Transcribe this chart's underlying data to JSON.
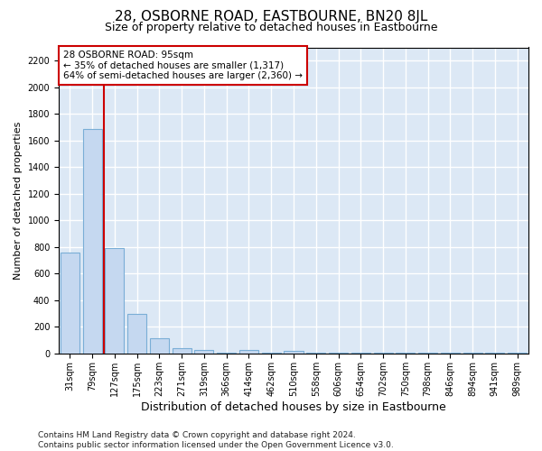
{
  "title": "28, OSBORNE ROAD, EASTBOURNE, BN20 8JL",
  "subtitle": "Size of property relative to detached houses in Eastbourne",
  "xlabel": "Distribution of detached houses by size in Eastbourne",
  "ylabel": "Number of detached properties",
  "categories": [
    "31sqm",
    "79sqm",
    "127sqm",
    "175sqm",
    "223sqm",
    "271sqm",
    "319sqm",
    "366sqm",
    "414sqm",
    "462sqm",
    "510sqm",
    "558sqm",
    "606sqm",
    "654sqm",
    "702sqm",
    "750sqm",
    "798sqm",
    "846sqm",
    "894sqm",
    "941sqm",
    "989sqm"
  ],
  "values": [
    760,
    1690,
    790,
    300,
    115,
    40,
    25,
    5,
    25,
    5,
    20,
    5,
    5,
    5,
    5,
    5,
    3,
    3,
    3,
    3,
    3
  ],
  "bar_color": "#c5d8f0",
  "bar_edge_color": "#7aaed6",
  "fig_background_color": "#ffffff",
  "ax_background_color": "#dce8f5",
  "grid_color": "#ffffff",
  "vline_x": 1.5,
  "vline_color": "#cc0000",
  "annotation_text": "28 OSBORNE ROAD: 95sqm\n← 35% of detached houses are smaller (1,317)\n64% of semi-detached houses are larger (2,360) →",
  "annotation_box_facecolor": "#ffffff",
  "annotation_box_edgecolor": "#cc0000",
  "ylim": [
    0,
    2300
  ],
  "yticks": [
    0,
    200,
    400,
    600,
    800,
    1000,
    1200,
    1400,
    1600,
    1800,
    2000,
    2200
  ],
  "footnote": "Contains HM Land Registry data © Crown copyright and database right 2024.\nContains public sector information licensed under the Open Government Licence v3.0.",
  "title_fontsize": 11,
  "subtitle_fontsize": 9,
  "xlabel_fontsize": 9,
  "ylabel_fontsize": 8,
  "tick_fontsize": 7,
  "annotation_fontsize": 7.5,
  "footnote_fontsize": 6.5
}
